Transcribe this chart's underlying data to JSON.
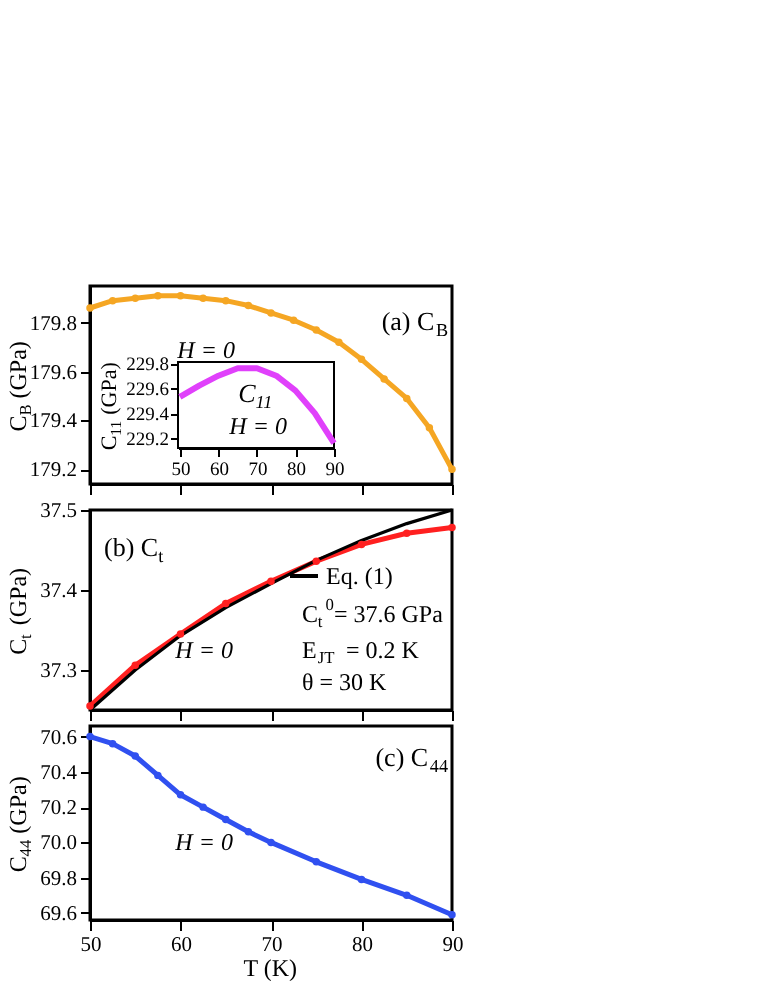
{
  "chart_data": [
    {
      "type": "line",
      "title": "(a) C$_{B}$",
      "ylabel": "C$_{B}$ (GPa)",
      "x": [
        50,
        52.5,
        55,
        57.5,
        60,
        62.5,
        65,
        67.5,
        70,
        72.5,
        75,
        77.5,
        80,
        82.5,
        85,
        87.5,
        90
      ],
      "marker": "circle",
      "series": [
        {
          "color": "#f5a623",
          "values": [
            179.86,
            179.89,
            179.9,
            179.91,
            179.91,
            179.9,
            179.89,
            179.87,
            179.84,
            179.81,
            179.77,
            179.72,
            179.65,
            179.57,
            179.49,
            179.37,
            179.2
          ]
        }
      ],
      "xlim": [
        50,
        90
      ],
      "xticks": [
        50,
        60,
        70,
        80,
        90
      ],
      "ylim": [
        179.14,
        179.95
      ],
      "yticks": [
        179.2,
        179.4,
        179.6,
        179.8
      ],
      "tick_labels": "y",
      "grid": false,
      "annotations": [
        "H = 0"
      ]
    },
    {
      "type": "line",
      "title": "C$_{11}$",
      "ylabel": "C$_{11}$ (GPa)",
      "x": [
        50,
        55,
        60,
        65,
        70,
        75,
        80,
        85,
        90
      ],
      "series": [
        {
          "color": "#e040fb",
          "values": [
            229.53,
            229.62,
            229.7,
            229.76,
            229.76,
            229.7,
            229.58,
            229.4,
            229.16
          ]
        }
      ],
      "xlim": [
        49.5,
        90
      ],
      "xticks": [
        50,
        60,
        70,
        80,
        90
      ],
      "ylim": [
        229.12,
        229.81
      ],
      "yticks": [
        229.2,
        229.4,
        229.6,
        229.8
      ],
      "grid": false,
      "annotations": [
        "H = 0"
      ]
    },
    {
      "type": "line",
      "title": "(b) C$_{t}$",
      "ylabel": "C$_{t}$ (GPa)",
      "x": [
        50,
        55,
        60,
        65,
        70,
        75,
        80,
        85,
        90
      ],
      "series": [
        {
          "color": "#ff2020",
          "marker": "circle",
          "values": [
            37.255,
            37.306,
            37.345,
            37.383,
            37.411,
            37.436,
            37.457,
            37.471,
            37.478
          ]
        },
        {
          "name": "Eq. (1)",
          "color": "#000000",
          "marker": "none",
          "values": [
            37.25,
            37.3,
            37.343,
            37.378,
            37.408,
            37.437,
            37.462,
            37.483,
            37.5
          ]
        }
      ],
      "xlim": [
        50,
        90
      ],
      "xticks": [
        50,
        60,
        70,
        80,
        90
      ],
      "ylim": [
        37.25,
        37.5
      ],
      "yticks": [
        37.3,
        37.4,
        37.5
      ],
      "tick_labels": "y",
      "grid": false,
      "legend": "top right",
      "annotations": [
        "H = 0",
        "C$_{t}$$^{0}$= 37.6 GPa",
        "E$_{JT}$ = 0.2 K",
        "θ = 30 K"
      ]
    },
    {
      "type": "line",
      "title": "(c) C$_{44}$",
      "xlabel": "T (K)",
      "ylabel": "C$_{44}$ (GPa)",
      "x": [
        50,
        52.5,
        55,
        57.5,
        60,
        62.5,
        65,
        67.5,
        70,
        75,
        80,
        85,
        90
      ],
      "marker": "circle",
      "series": [
        {
          "color": "#3050f0",
          "values": [
            70.6,
            70.56,
            70.49,
            70.38,
            70.27,
            70.2,
            70.13,
            70.06,
            70.0,
            69.89,
            69.79,
            69.7,
            69.59
          ]
        }
      ],
      "xlim": [
        50,
        90
      ],
      "xticks": [
        50,
        60,
        70,
        80,
        90
      ],
      "ylim": [
        69.56,
        70.66
      ],
      "yticks": [
        {
          "value": 69.6,
          "label": "69.6"
        },
        {
          "value": 69.8,
          "label": "69.8"
        },
        {
          "value": 70,
          "label": "70.0"
        },
        {
          "value": 70.2,
          "label": "70.2"
        },
        {
          "value": 70.4,
          "label": "70.4"
        },
        {
          "value": 70.6,
          "label": "70.6"
        }
      ],
      "grid": false,
      "annotations": [
        "H = 0"
      ]
    }
  ]
}
